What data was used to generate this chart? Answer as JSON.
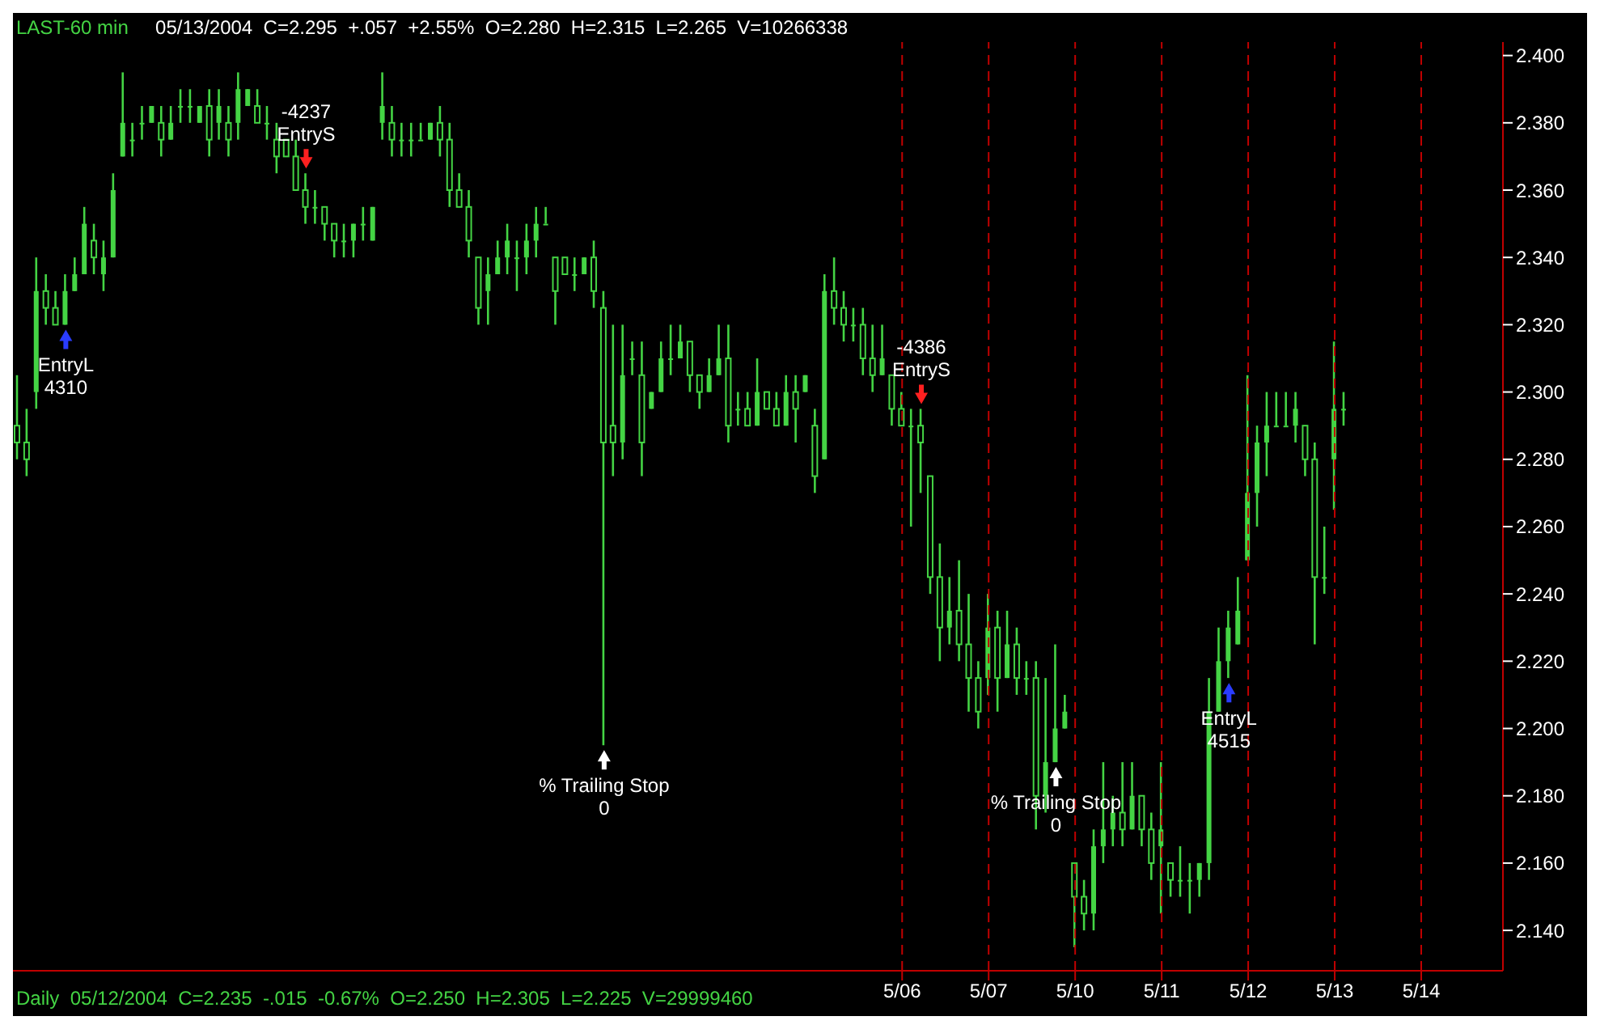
{
  "chart_data": {
    "type": "candlestick",
    "title": "LAST-60 min",
    "subtitle": "05/13/2004  C=2.295  +.057  +2.55%  O=2.280  H=2.315  L=2.265  V=10266338",
    "color": "#44d444",
    "grid": "x",
    "categories": [
      null,
      null,
      null,
      null,
      null,
      null,
      null,
      null,
      null,
      null,
      null,
      null,
      null,
      null,
      null,
      null,
      null,
      null,
      null,
      null,
      null,
      null,
      null,
      null,
      null,
      null,
      null,
      null,
      null,
      null,
      null,
      null,
      null,
      null,
      null,
      null,
      null,
      null,
      null,
      null,
      null,
      null,
      null,
      null,
      null,
      null,
      null,
      null,
      null,
      null,
      null,
      null,
      null,
      null,
      null,
      null,
      null,
      null,
      null,
      null,
      null,
      null,
      null,
      null,
      null,
      null,
      null,
      null,
      null,
      null,
      null,
      null,
      null,
      null,
      null,
      null,
      null,
      null,
      null,
      null,
      null,
      null,
      null,
      null,
      null,
      null,
      null,
      null,
      null,
      null,
      null,
      null,
      "5/06",
      null,
      null,
      null,
      null,
      null,
      null,
      null,
      null,
      "5/07",
      null,
      null,
      null,
      null,
      null,
      null,
      null,
      null,
      "5/10",
      null,
      null,
      null,
      null,
      null,
      null,
      null,
      null,
      "5/11",
      null,
      null,
      null,
      null,
      null,
      null,
      null,
      null,
      "5/12",
      null,
      null,
      null,
      null,
      null,
      null,
      null,
      null,
      "5/13",
      null,
      null,
      null,
      null,
      null,
      null,
      null,
      null,
      "5/14",
      null,
      null,
      null,
      null,
      null,
      null,
      null,
      null
    ],
    "ohlc": [
      [
        2.29,
        2.305,
        2.28,
        2.285
      ],
      [
        2.285,
        2.295,
        2.275,
        2.28
      ],
      [
        2.3,
        2.34,
        2.295,
        2.33
      ],
      [
        2.33,
        2.335,
        2.32,
        2.325
      ],
      [
        2.325,
        2.33,
        2.32,
        2.32
      ],
      [
        2.32,
        2.335,
        2.32,
        2.33
      ],
      [
        2.33,
        2.34,
        2.33,
        2.335
      ],
      [
        2.335,
        2.355,
        2.335,
        2.35
      ],
      [
        2.345,
        2.35,
        2.335,
        2.34
      ],
      [
        2.335,
        2.345,
        2.33,
        2.34
      ],
      [
        2.34,
        2.365,
        2.34,
        2.36
      ],
      [
        2.37,
        2.395,
        2.37,
        2.38
      ],
      [
        2.375,
        2.38,
        2.37,
        2.375
      ],
      [
        2.38,
        2.385,
        2.375,
        2.38
      ],
      [
        2.38,
        2.385,
        2.38,
        2.385
      ],
      [
        2.38,
        2.385,
        2.37,
        2.375
      ],
      [
        2.375,
        2.385,
        2.375,
        2.38
      ],
      [
        2.385,
        2.39,
        2.38,
        2.385
      ],
      [
        2.385,
        2.39,
        2.38,
        2.385
      ],
      [
        2.38,
        2.385,
        2.38,
        2.385
      ],
      [
        2.385,
        2.39,
        2.37,
        2.375
      ],
      [
        2.38,
        2.39,
        2.375,
        2.385
      ],
      [
        2.38,
        2.385,
        2.37,
        2.375
      ],
      [
        2.38,
        2.395,
        2.375,
        2.39
      ],
      [
        2.385,
        2.39,
        2.385,
        2.39
      ],
      [
        2.385,
        2.39,
        2.38,
        2.38
      ],
      [
        2.38,
        2.385,
        2.375,
        2.38
      ],
      [
        2.375,
        2.38,
        2.365,
        2.37
      ],
      [
        2.375,
        2.375,
        2.37,
        2.37
      ],
      [
        2.37,
        2.375,
        2.36,
        2.36
      ],
      [
        2.36,
        2.365,
        2.35,
        2.355
      ],
      [
        2.355,
        2.36,
        2.35,
        2.355
      ],
      [
        2.355,
        2.355,
        2.345,
        2.35
      ],
      [
        2.35,
        2.35,
        2.34,
        2.345
      ],
      [
        2.345,
        2.35,
        2.34,
        2.345
      ],
      [
        2.345,
        2.35,
        2.34,
        2.35
      ],
      [
        2.35,
        2.355,
        2.345,
        2.35
      ],
      [
        2.345,
        2.355,
        2.345,
        2.355
      ],
      [
        2.38,
        2.395,
        2.375,
        2.385
      ],
      [
        2.38,
        2.385,
        2.37,
        2.375
      ],
      [
        2.375,
        2.38,
        2.37,
        2.375
      ],
      [
        2.375,
        2.38,
        2.37,
        2.375
      ],
      [
        2.375,
        2.38,
        2.375,
        2.375
      ],
      [
        2.375,
        2.38,
        2.375,
        2.38
      ],
      [
        2.38,
        2.385,
        2.37,
        2.375
      ],
      [
        2.375,
        2.38,
        2.355,
        2.36
      ],
      [
        2.36,
        2.365,
        2.355,
        2.355
      ],
      [
        2.355,
        2.36,
        2.34,
        2.345
      ],
      [
        2.34,
        2.34,
        2.32,
        2.325
      ],
      [
        2.33,
        2.34,
        2.32,
        2.335
      ],
      [
        2.335,
        2.345,
        2.335,
        2.34
      ],
      [
        2.34,
        2.35,
        2.335,
        2.345
      ],
      [
        2.34,
        2.345,
        2.33,
        2.34
      ],
      [
        2.34,
        2.35,
        2.335,
        2.345
      ],
      [
        2.345,
        2.355,
        2.34,
        2.35
      ],
      [
        2.35,
        2.355,
        2.35,
        2.35
      ],
      [
        2.34,
        2.34,
        2.32,
        2.33
      ],
      [
        2.34,
        2.34,
        2.335,
        2.335
      ],
      [
        2.335,
        2.34,
        2.33,
        2.335
      ],
      [
        2.335,
        2.34,
        2.335,
        2.34
      ],
      [
        2.34,
        2.345,
        2.325,
        2.33
      ],
      [
        2.325,
        2.33,
        2.195,
        2.285
      ],
      [
        2.29,
        2.32,
        2.275,
        2.285
      ],
      [
        2.285,
        2.32,
        2.28,
        2.305
      ],
      [
        2.31,
        2.315,
        2.305,
        2.31
      ],
      [
        2.305,
        2.315,
        2.275,
        2.285
      ],
      [
        2.295,
        2.3,
        2.295,
        2.3
      ],
      [
        2.3,
        2.315,
        2.3,
        2.31
      ],
      [
        2.31,
        2.32,
        2.305,
        2.31
      ],
      [
        2.31,
        2.32,
        2.31,
        2.315
      ],
      [
        2.315,
        2.315,
        2.3,
        2.305
      ],
      [
        2.305,
        2.305,
        2.295,
        2.3
      ],
      [
        2.3,
        2.31,
        2.3,
        2.305
      ],
      [
        2.305,
        2.32,
        2.305,
        2.31
      ],
      [
        2.31,
        2.32,
        2.285,
        2.29
      ],
      [
        2.295,
        2.3,
        2.29,
        2.295
      ],
      [
        2.295,
        2.3,
        2.29,
        2.29
      ],
      [
        2.29,
        2.31,
        2.29,
        2.3
      ],
      [
        2.3,
        2.3,
        2.295,
        2.295
      ],
      [
        2.295,
        2.3,
        2.29,
        2.29
      ],
      [
        2.29,
        2.305,
        2.29,
        2.3
      ],
      [
        2.3,
        2.305,
        2.285,
        2.295
      ],
      [
        2.3,
        2.305,
        2.3,
        2.305
      ],
      [
        2.29,
        2.295,
        2.27,
        2.275
      ],
      [
        2.28,
        2.335,
        2.28,
        2.33
      ],
      [
        2.33,
        2.34,
        2.32,
        2.325
      ],
      [
        2.325,
        2.33,
        2.315,
        2.32
      ],
      [
        2.32,
        2.325,
        2.315,
        2.32
      ],
      [
        2.32,
        2.325,
        2.305,
        2.31
      ],
      [
        2.31,
        2.32,
        2.3,
        2.305
      ],
      [
        2.305,
        2.32,
        2.305,
        2.31
      ],
      [
        2.305,
        2.305,
        2.29,
        2.295
      ],
      [
        2.295,
        2.3,
        2.29,
        2.29
      ],
      [
        2.29,
        2.295,
        2.26,
        2.29
      ],
      [
        2.29,
        2.295,
        2.27,
        2.285
      ],
      [
        2.275,
        2.275,
        2.24,
        2.245
      ],
      [
        2.245,
        2.255,
        2.22,
        2.23
      ],
      [
        2.23,
        2.245,
        2.225,
        2.235
      ],
      [
        2.235,
        2.25,
        2.22,
        2.225
      ],
      [
        2.225,
        2.24,
        2.205,
        2.215
      ],
      [
        2.215,
        2.22,
        2.2,
        2.205
      ],
      [
        2.215,
        2.24,
        2.21,
        2.23
      ],
      [
        2.23,
        2.235,
        2.205,
        2.215
      ],
      [
        2.215,
        2.235,
        2.215,
        2.225
      ],
      [
        2.225,
        2.23,
        2.21,
        2.215
      ],
      [
        2.215,
        2.22,
        2.21,
        2.215
      ],
      [
        2.215,
        2.22,
        2.17,
        2.18
      ],
      [
        2.18,
        2.215,
        2.175,
        2.19
      ],
      [
        2.19,
        2.225,
        2.19,
        2.2
      ],
      [
        2.2,
        2.21,
        2.2,
        2.205
      ],
      [
        2.16,
        2.16,
        2.135,
        2.15
      ],
      [
        2.15,
        2.155,
        2.14,
        2.145
      ],
      [
        2.145,
        2.17,
        2.14,
        2.165
      ],
      [
        2.165,
        2.19,
        2.16,
        2.17
      ],
      [
        2.17,
        2.18,
        2.165,
        2.175
      ],
      [
        2.175,
        2.19,
        2.165,
        2.17
      ],
      [
        2.17,
        2.19,
        2.17,
        2.18
      ],
      [
        2.18,
        2.18,
        2.165,
        2.17
      ],
      [
        2.17,
        2.175,
        2.155,
        2.16
      ],
      [
        2.165,
        2.19,
        2.145,
        2.17
      ],
      [
        2.16,
        2.16,
        2.15,
        2.155
      ],
      [
        2.155,
        2.165,
        2.15,
        2.155
      ],
      [
        2.155,
        2.16,
        2.145,
        2.155
      ],
      [
        2.155,
        2.16,
        2.15,
        2.16
      ],
      [
        2.16,
        2.215,
        2.155,
        2.205
      ],
      [
        2.205,
        2.23,
        2.205,
        2.22
      ],
      [
        2.22,
        2.235,
        2.215,
        2.23
      ],
      [
        2.225,
        2.245,
        2.225,
        2.235
      ],
      [
        2.25,
        2.305,
        2.25,
        2.27
      ],
      [
        2.27,
        2.29,
        2.26,
        2.285
      ],
      [
        2.285,
        2.3,
        2.275,
        2.29
      ],
      [
        2.29,
        2.3,
        2.29,
        2.29
      ],
      [
        2.29,
        2.3,
        2.29,
        2.29
      ],
      [
        2.29,
        2.3,
        2.285,
        2.295
      ],
      [
        2.29,
        2.29,
        2.275,
        2.28
      ],
      [
        2.28,
        2.285,
        2.225,
        2.245
      ],
      [
        2.245,
        2.26,
        2.24,
        2.245
      ],
      [
        2.28,
        2.315,
        2.265,
        2.295
      ],
      [
        2.295,
        2.3,
        2.29,
        2.295
      ],
      null,
      null,
      null,
      null,
      null,
      null,
      null,
      null,
      null,
      null,
      null,
      null,
      null,
      null,
      null,
      null
    ],
    "ylim": [
      2.128,
      2.404
    ],
    "yticks": [
      {
        "value": 2.14,
        "label": "2.140"
      },
      {
        "value": 2.16,
        "label": "2.160"
      },
      {
        "value": 2.18,
        "label": "2.180"
      },
      {
        "value": 2.2,
        "label": "2.200"
      },
      {
        "value": 2.22,
        "label": "2.220"
      },
      {
        "value": 2.24,
        "label": "2.240"
      },
      {
        "value": 2.26,
        "label": "2.260"
      },
      {
        "value": 2.28,
        "label": "2.280"
      },
      {
        "value": 2.3,
        "label": "2.300"
      },
      {
        "value": 2.32,
        "label": "2.320"
      },
      {
        "value": 2.34,
        "label": "2.340"
      },
      {
        "value": 2.36,
        "label": "2.360"
      },
      {
        "value": 2.38,
        "label": "2.380"
      },
      {
        "value": 2.4,
        "label": "2.400"
      }
    ],
    "annotations": [
      "EntryL\n4310",
      "-4237\nEntryS",
      "% Trailing Stop\n0",
      "-4386\nEntryS",
      "% Trailing Stop\n0",
      "EntryL\n4515",
      "Daily  05/12/2004  C=2.235  -.015  -0.67%  O=2.250  H=2.305  L=2.225  V=29999460"
    ]
  }
}
